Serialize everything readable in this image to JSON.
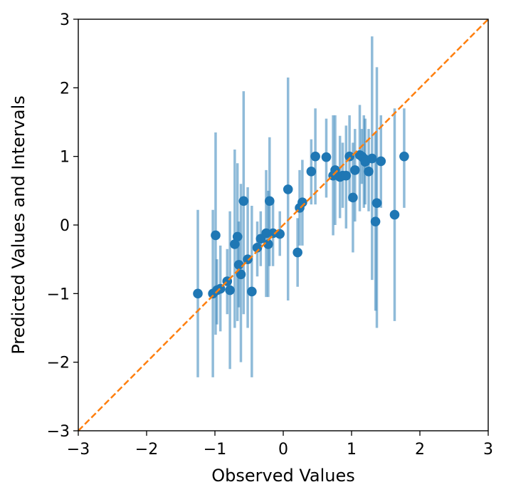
{
  "chart_data": {
    "type": "scatter",
    "title": "",
    "xlabel": "Observed Values",
    "ylabel": "Predicted Values and Intervals",
    "xlim": [
      -3,
      3
    ],
    "ylim": [
      -3,
      3
    ],
    "x_ticks": [
      -3,
      -2,
      -1,
      0,
      1,
      2,
      3
    ],
    "y_ticks": [
      -3,
      -2,
      -1,
      0,
      1,
      2,
      3
    ],
    "x_tick_labels": [
      "−3",
      "−2",
      "−1",
      "0",
      "1",
      "2",
      "3"
    ],
    "y_tick_labels": [
      "−3",
      "−2",
      "−1",
      "0",
      "1",
      "2",
      "3"
    ],
    "grid": false,
    "colors": {
      "points": "#1f77b4",
      "intervals": "#1f77b4",
      "identity_line": "#ff7f0e"
    },
    "identity_line": {
      "style": "dashed",
      "from": [
        -3,
        -3
      ],
      "to": [
        3,
        3
      ]
    },
    "points": [
      {
        "x": -1.25,
        "y": -1.0,
        "lo": -2.22,
        "hi": 0.22
      },
      {
        "x": -1.03,
        "y": -1.0,
        "lo": -2.22,
        "hi": 0.22
      },
      {
        "x": -0.99,
        "y": -0.15,
        "lo": -1.6,
        "hi": 1.35
      },
      {
        "x": -0.97,
        "y": -0.95,
        "lo": -1.45,
        "hi": -0.5
      },
      {
        "x": -0.92,
        "y": -0.93,
        "lo": -1.55,
        "hi": -0.3
      },
      {
        "x": -0.82,
        "y": -0.82,
        "lo": -1.3,
        "hi": -0.35
      },
      {
        "x": -0.78,
        "y": -0.95,
        "lo": -2.1,
        "hi": 0.2
      },
      {
        "x": -0.71,
        "y": -0.28,
        "lo": -1.5,
        "hi": 1.1
      },
      {
        "x": -0.67,
        "y": -0.17,
        "lo": -1.4,
        "hi": 0.9
      },
      {
        "x": -0.65,
        "y": -0.58,
        "lo": -1.2,
        "hi": 0.05
      },
      {
        "x": -0.62,
        "y": -0.72,
        "lo": -2.0,
        "hi": 0.6
      },
      {
        "x": -0.58,
        "y": 0.35,
        "lo": -1.3,
        "hi": 1.95
      },
      {
        "x": -0.52,
        "y": -0.5,
        "lo": -1.5,
        "hi": 0.55
      },
      {
        "x": -0.46,
        "y": -0.97,
        "lo": -2.22,
        "hi": 0.28
      },
      {
        "x": -0.38,
        "y": -0.33,
        "lo": -0.75,
        "hi": 0.05
      },
      {
        "x": -0.33,
        "y": -0.2,
        "lo": -0.6,
        "hi": 0.2
      },
      {
        "x": -0.25,
        "y": -0.12,
        "lo": -1.05,
        "hi": 0.8
      },
      {
        "x": -0.22,
        "y": -0.28,
        "lo": -1.05,
        "hi": 0.5
      },
      {
        "x": -0.2,
        "y": 0.35,
        "lo": -0.6,
        "hi": 1.28
      },
      {
        "x": -0.15,
        "y": -0.12,
        "lo": -0.6,
        "hi": 0.35
      },
      {
        "x": -0.05,
        "y": -0.13,
        "lo": -0.45,
        "hi": 0.2
      },
      {
        "x": 0.07,
        "y": 0.52,
        "lo": -1.1,
        "hi": 2.15
      },
      {
        "x": 0.21,
        "y": -0.4,
        "lo": -0.9,
        "hi": 0.1
      },
      {
        "x": 0.24,
        "y": 0.25,
        "lo": -0.3,
        "hi": 0.8
      },
      {
        "x": 0.28,
        "y": 0.33,
        "lo": -0.3,
        "hi": 0.95
      },
      {
        "x": 0.41,
        "y": 0.78,
        "lo": 0.3,
        "hi": 1.25
      },
      {
        "x": 0.47,
        "y": 1.0,
        "lo": 0.3,
        "hi": 1.7
      },
      {
        "x": 0.63,
        "y": 0.99,
        "lo": 0.4,
        "hi": 1.55
      },
      {
        "x": 0.73,
        "y": 0.72,
        "lo": -0.15,
        "hi": 1.6
      },
      {
        "x": 0.76,
        "y": 0.8,
        "lo": 0.0,
        "hi": 1.6
      },
      {
        "x": 0.83,
        "y": 0.7,
        "lo": 0.1,
        "hi": 1.3
      },
      {
        "x": 0.87,
        "y": 0.72,
        "lo": 0.25,
        "hi": 1.2
      },
      {
        "x": 0.92,
        "y": 0.72,
        "lo": -0.05,
        "hi": 1.45
      },
      {
        "x": 0.97,
        "y": 1.0,
        "lo": 0.35,
        "hi": 1.6
      },
      {
        "x": 1.02,
        "y": 0.4,
        "lo": -0.4,
        "hi": 1.2
      },
      {
        "x": 1.05,
        "y": 0.8,
        "lo": 0.05,
        "hi": 1.4
      },
      {
        "x": 1.12,
        "y": 1.02,
        "lo": 0.2,
        "hi": 1.75
      },
      {
        "x": 1.15,
        "y": 1.0,
        "lo": 0.6,
        "hi": 1.4
      },
      {
        "x": 1.18,
        "y": 0.97,
        "lo": 0.25,
        "hi": 1.6
      },
      {
        "x": 1.2,
        "y": 0.92,
        "lo": 0.3,
        "hi": 1.55
      },
      {
        "x": 1.25,
        "y": 0.78,
        "lo": 0.2,
        "hi": 1.4
      },
      {
        "x": 1.3,
        "y": 0.97,
        "lo": -0.8,
        "hi": 2.75
      },
      {
        "x": 1.35,
        "y": 0.05,
        "lo": -1.25,
        "hi": 1.35
      },
      {
        "x": 1.37,
        "y": 0.32,
        "lo": -1.5,
        "hi": 2.3
      },
      {
        "x": 1.43,
        "y": 0.93,
        "lo": 0.25,
        "hi": 1.6
      },
      {
        "x": 1.63,
        "y": 0.15,
        "lo": -1.4,
        "hi": 1.7
      },
      {
        "x": 1.77,
        "y": 1.0,
        "lo": 0.25,
        "hi": 1.7
      }
    ]
  }
}
